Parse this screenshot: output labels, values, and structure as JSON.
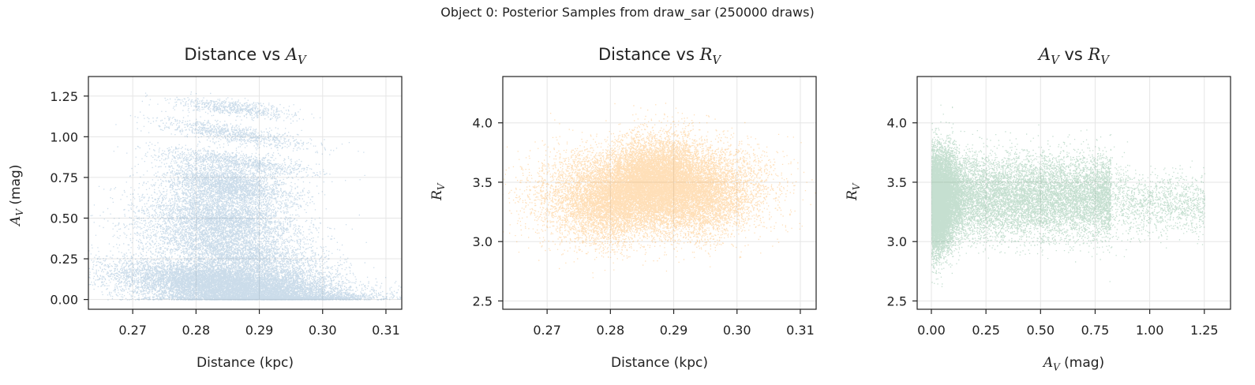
{
  "suptitle": "Object 0: Posterior Samples from draw_sar (250000 draws)",
  "colors": {
    "panel1": "#4682b4",
    "panel2": "#ff8c00",
    "panel3": "#2e8b57",
    "grid": "#e5e5e5",
    "axis": "#222222"
  },
  "chart_data": [
    {
      "type": "scatter",
      "title": "Distance vs A_V",
      "xlabel": "Distance (kpc)",
      "ylabel": "A_V (mag)",
      "xlim": [
        0.263,
        0.3125
      ],
      "ylim": [
        -0.06,
        1.37
      ],
      "xticks": [
        "0.27",
        "0.28",
        "0.29",
        "0.30",
        "0.31"
      ],
      "yticks": [
        "0.00",
        "0.25",
        "0.50",
        "0.75",
        "1.00",
        "1.25"
      ],
      "grid": true,
      "color": "#4682b4",
      "n_draws": 250000
    },
    {
      "type": "scatter",
      "title": "Distance vs R_V",
      "xlabel": "Distance (kpc)",
      "ylabel": "R_V",
      "xlim": [
        0.263,
        0.3125
      ],
      "ylim": [
        2.43,
        4.39
      ],
      "xticks": [
        "0.27",
        "0.28",
        "0.29",
        "0.30",
        "0.31"
      ],
      "yticks": [
        "2.5",
        "3.0",
        "3.5",
        "4.0"
      ],
      "grid": true,
      "color": "#ff8c00",
      "n_draws": 250000
    },
    {
      "type": "scatter",
      "title": "A_V vs R_V",
      "xlabel": "A_V (mag)",
      "ylabel": "R_V",
      "xlim": [
        -0.065,
        1.37
      ],
      "ylim": [
        2.43,
        4.39
      ],
      "xticks": [
        "0.00",
        "0.25",
        "0.50",
        "0.75",
        "1.00",
        "1.25"
      ],
      "yticks": [
        "2.5",
        "3.0",
        "3.5",
        "4.0"
      ],
      "grid": true,
      "color": "#2e8b57",
      "n_draws": 250000
    }
  ]
}
